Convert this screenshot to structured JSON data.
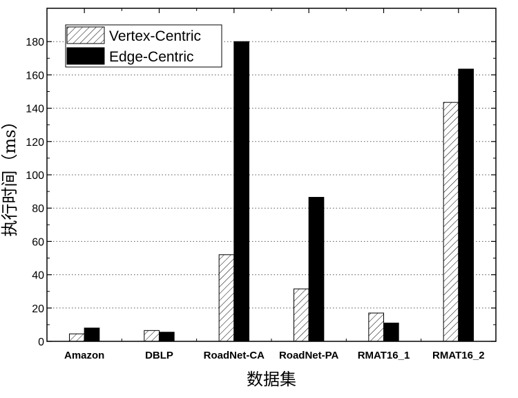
{
  "chart_data": {
    "type": "bar",
    "categories": [
      "Amazon",
      "DBLP",
      "RoadNet-CA",
      "RoadNet-PA",
      "RMAT16_1",
      "RMAT16_2"
    ],
    "series": [
      {
        "name": "Vertex-Centric",
        "values": [
          4.5,
          6.5,
          52,
          31.5,
          17,
          143.5
        ],
        "fill": "hatch"
      },
      {
        "name": "Edge-Centric",
        "values": [
          8,
          5.5,
          180,
          86.5,
          11,
          163.5
        ],
        "fill": "#000000"
      }
    ],
    "xlabel": "数据集",
    "ylabel": "执行时间（ms）",
    "ylim": [
      0,
      200
    ],
    "yticks": [
      0,
      20,
      40,
      60,
      80,
      100,
      120,
      140,
      160,
      180
    ],
    "grid": "dotted horizontal",
    "legend": "top-left"
  }
}
